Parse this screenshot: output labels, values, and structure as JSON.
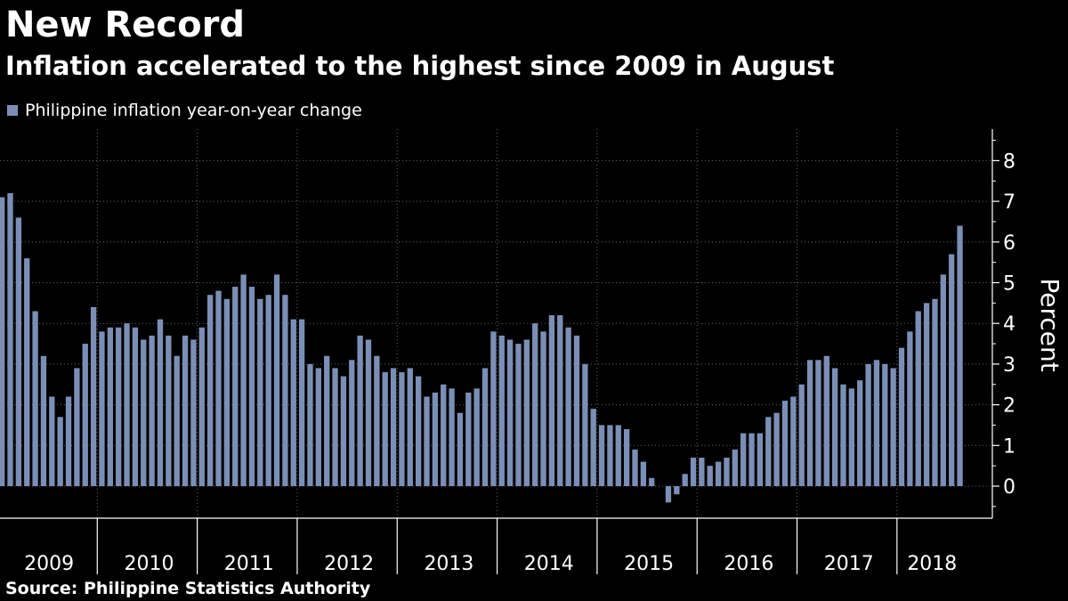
{
  "header": {
    "title": "New Record",
    "subtitle": "Inflation accelerated to the highest since 2009 in August"
  },
  "footer": {
    "source": "Source: Philippine Statistics Authority"
  },
  "colors": {
    "bar": "#7b8fb6",
    "background": "#000000",
    "text": "#ffffff",
    "grid": "#666666"
  },
  "chart_data": {
    "type": "bar",
    "title": "New Record",
    "subtitle": "Inflation accelerated to the highest since 2009 in August",
    "xlabel": "",
    "ylabel": "Percent",
    "legend": {
      "label": "Philippine inflation year-on-year change",
      "placement": "top-left"
    },
    "ylim": [
      -0.8,
      8.8
    ],
    "yticks": [
      0,
      1,
      2,
      3,
      4,
      5,
      6,
      7,
      8
    ],
    "ytick_labels": [
      "0",
      "1",
      "2",
      "3",
      "4",
      "5",
      "6",
      "7",
      "8"
    ],
    "grid": true,
    "y_axis_side": "right",
    "x_start": "Jan 2009",
    "x_end": "Aug 2018",
    "frequency": "monthly",
    "year_labels": [
      "2009",
      "2010",
      "2011",
      "2012",
      "2013",
      "2014",
      "2015",
      "2016",
      "2017",
      "2018"
    ],
    "values": [
      7.1,
      7.2,
      6.6,
      5.6,
      4.3,
      3.2,
      2.2,
      1.7,
      2.2,
      2.9,
      3.5,
      4.4,
      3.8,
      3.9,
      3.9,
      4.0,
      3.9,
      3.6,
      3.7,
      4.1,
      3.7,
      3.2,
      3.7,
      3.6,
      3.9,
      4.7,
      4.8,
      4.6,
      4.9,
      5.2,
      4.9,
      4.6,
      4.7,
      5.2,
      4.7,
      4.1,
      4.1,
      3.0,
      2.9,
      3.2,
      2.9,
      2.7,
      3.1,
      3.7,
      3.6,
      3.2,
      2.8,
      2.9,
      2.8,
      2.9,
      2.7,
      2.2,
      2.3,
      2.5,
      2.4,
      1.8,
      2.3,
      2.4,
      2.9,
      3.8,
      3.7,
      3.6,
      3.5,
      3.6,
      4.0,
      3.8,
      4.2,
      4.2,
      3.9,
      3.7,
      3.0,
      1.9,
      1.5,
      1.5,
      1.5,
      1.4,
      0.9,
      0.6,
      0.2,
      0.0,
      -0.4,
      -0.2,
      0.3,
      0.7,
      0.7,
      0.5,
      0.6,
      0.7,
      0.9,
      1.3,
      1.3,
      1.3,
      1.7,
      1.8,
      2.1,
      2.2,
      2.5,
      3.1,
      3.1,
      3.2,
      2.9,
      2.5,
      2.4,
      2.6,
      3.0,
      3.1,
      3.0,
      2.9,
      3.4,
      3.8,
      4.3,
      4.5,
      4.6,
      5.2,
      5.7,
      6.4
    ]
  }
}
